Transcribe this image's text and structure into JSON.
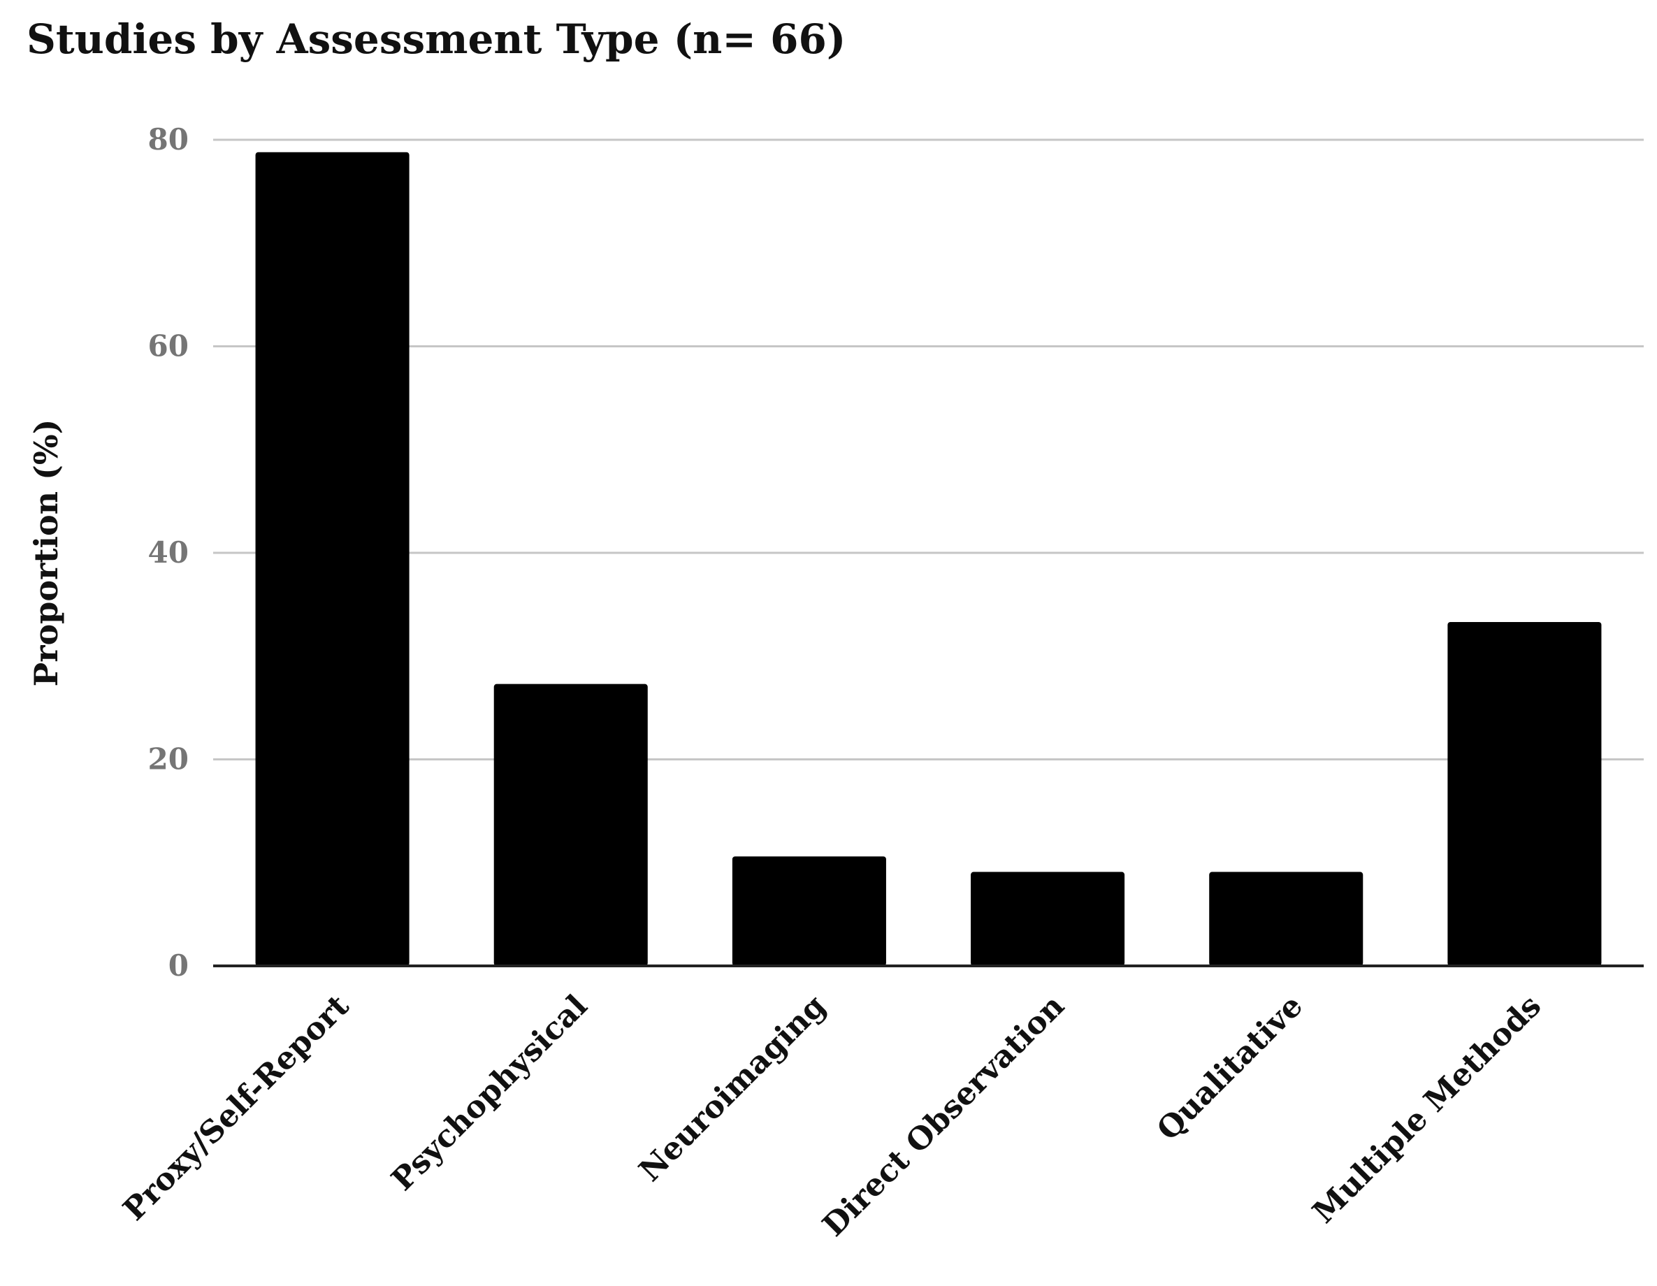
{
  "chart_data": {
    "type": "bar",
    "title": "Studies by Assessment Type (n= 66)",
    "xlabel": "",
    "ylabel": "Proportion (%)",
    "categories": [
      "Proxy/Self-Report",
      "Psychophysical",
      "Neuroimaging",
      "Direct Observation",
      "Qualitative",
      "Multiple Methods"
    ],
    "values": [
      78.8,
      27.3,
      10.6,
      9.1,
      9.1,
      33.3
    ],
    "yticks": [
      "0",
      "20",
      "40",
      "60",
      "80"
    ],
    "ylim": [
      0,
      80
    ],
    "grid": true,
    "legend": "none",
    "colors": {
      "bar": "#000000",
      "grid": "#c6c6c6",
      "axis": "#222222",
      "tick_text": "#757575",
      "text": "#111111"
    }
  }
}
